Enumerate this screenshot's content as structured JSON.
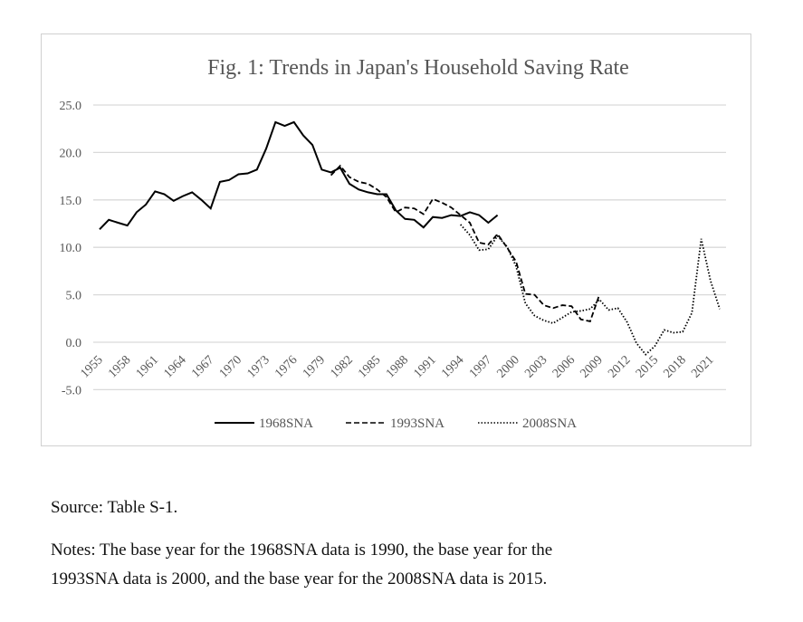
{
  "chart_data": {
    "type": "line",
    "title": "Fig. 1: Trends in Japan's Household Saving Rate",
    "xlabel": "",
    "ylabel": "",
    "ylim": [
      -5,
      25
    ],
    "yticks": [
      "25.0",
      "20.0",
      "15.0",
      "10.0",
      "5.0",
      "0.0",
      "-5.0"
    ],
    "ytick_values": [
      25,
      20,
      15,
      10,
      5,
      0,
      -5
    ],
    "xticks": [
      "1955",
      "1958",
      "1961",
      "1964",
      "1967",
      "1970",
      "1973",
      "1976",
      "1979",
      "1982",
      "1985",
      "1988",
      "1991",
      "1994",
      "1997",
      "2000",
      "2003",
      "2006",
      "2009",
      "2012",
      "2015",
      "2018",
      "2021"
    ],
    "xlim": [
      1955,
      2022
    ],
    "grid": true,
    "legend_position": "bottom",
    "series": [
      {
        "name": "1968SNA",
        "style": "solid",
        "start": 1955,
        "values": [
          11.9,
          12.9,
          12.6,
          12.3,
          13.7,
          14.5,
          15.9,
          15.6,
          14.9,
          15.4,
          15.8,
          15.0,
          14.1,
          16.9,
          17.1,
          17.7,
          17.8,
          18.2,
          20.4,
          23.2,
          22.8,
          23.2,
          21.8,
          20.8,
          18.2,
          17.9,
          18.4,
          16.7,
          16.1,
          15.8,
          15.6,
          15.6,
          13.9,
          13.0,
          12.9,
          12.1,
          13.2,
          13.1,
          13.4,
          13.3,
          13.7,
          13.4,
          12.6,
          13.4
        ]
      },
      {
        "name": "1993SNA",
        "style": "dashed",
        "start": 1980,
        "values": [
          17.6,
          18.6,
          17.4,
          16.9,
          16.7,
          16.1,
          15.3,
          13.7,
          14.2,
          14.1,
          13.5,
          15.1,
          14.7,
          14.2,
          13.4,
          12.6,
          10.5,
          10.3,
          11.4,
          10.0,
          8.5,
          5.1,
          5.0,
          3.9,
          3.6,
          3.9,
          3.8,
          2.4,
          2.2,
          5.0
        ]
      },
      {
        "name": "2008SNA",
        "style": "dotted",
        "start": 1994,
        "values": [
          12.4,
          11.3,
          9.7,
          9.8,
          11.2,
          10.1,
          8.0,
          4.1,
          2.8,
          2.3,
          2.0,
          2.6,
          3.2,
          3.3,
          3.5,
          4.5,
          3.4,
          3.6,
          2.1,
          -0.1,
          -1.3,
          -0.4,
          1.3,
          1.0,
          1.1,
          3.1,
          10.9,
          6.5,
          3.5
        ]
      }
    ]
  },
  "source": "Source: Table S-1.",
  "notes": [
    "Notes: The base year for the 1968SNA data is 1990, the base year for the",
    "1993SNA data is 2000, and the base year for the 2008SNA data is 2015."
  ]
}
